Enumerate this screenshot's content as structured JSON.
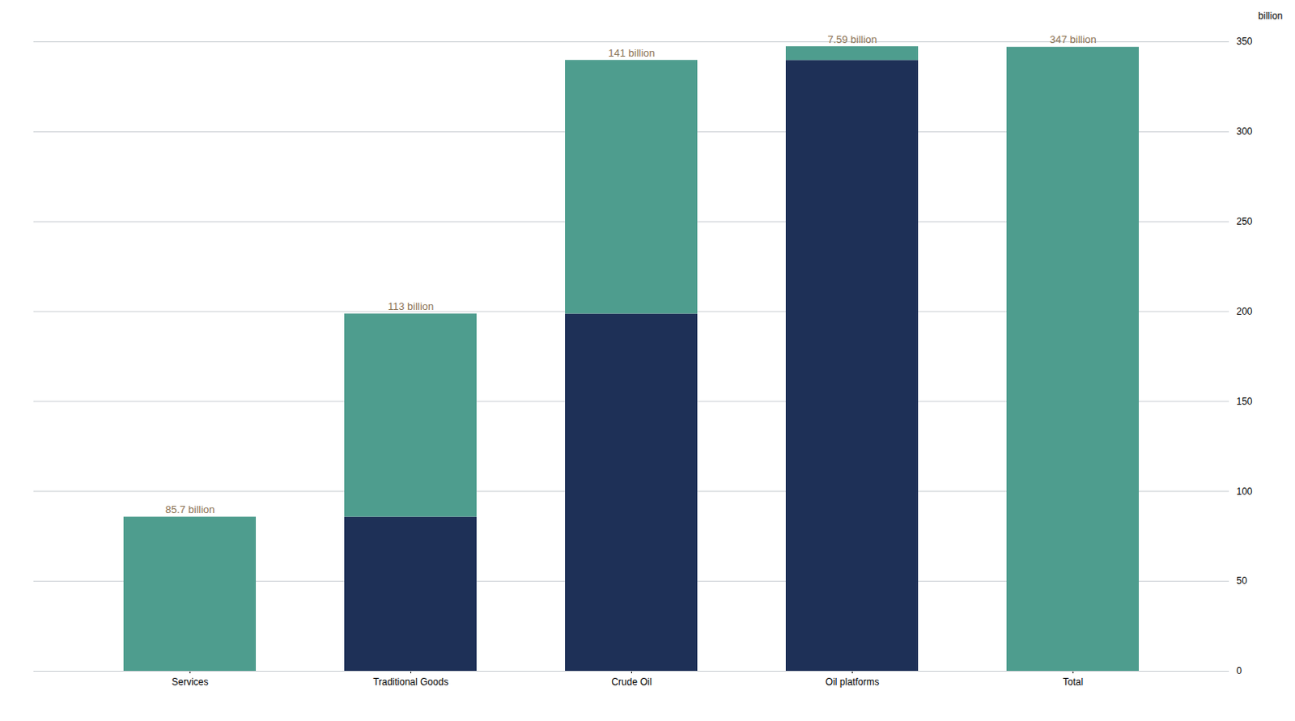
{
  "chart_data": {
    "type": "bar",
    "stacked": true,
    "categories": [
      "Services",
      "Traditional Goods",
      "Crude Oil",
      "Oil platforms",
      "Total"
    ],
    "series": [
      {
        "color": "#1e3057",
        "values": [
          0,
          85.7,
          198.7,
          339.7,
          0
        ]
      },
      {
        "color": "#4e9d8e",
        "values": [
          85.7,
          113.0,
          141.0,
          7.59,
          347.0
        ],
        "value_labels": [
          "85.7 billion",
          "113 billion",
          "141 billion",
          "7.59 billion",
          "347 billion"
        ]
      }
    ],
    "data_labels": true,
    "ylabel": "billion",
    "ylim": [
      0,
      350
    ],
    "yticks": [
      0,
      50,
      100,
      150,
      200,
      250,
      300,
      350
    ],
    "grid": true
  }
}
